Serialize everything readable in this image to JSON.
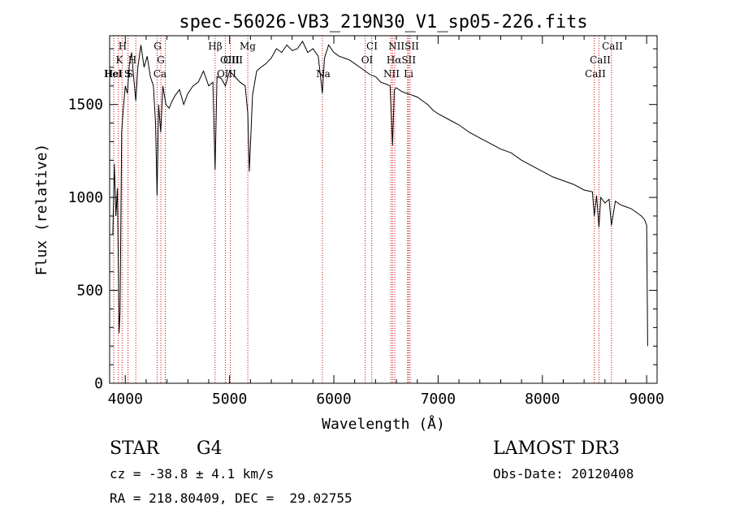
{
  "chart_data": {
    "type": "line",
    "title": "spec-56026-VB3_219N30_V1_sp05-226.fits",
    "xlabel": "Wavelength (Å)",
    "ylabel": "Flux (relative)",
    "xlim": [
      3850,
      9100
    ],
    "ylim": [
      0,
      1870
    ],
    "x_ticks": [
      4000,
      5000,
      6000,
      7000,
      8000,
      9000
    ],
    "y_ticks": [
      0,
      500,
      1000,
      1500
    ],
    "line_color": "#000000",
    "marker_color": "#cc0000",
    "series": [
      {
        "name": "flux",
        "x": [
          3880,
          3895,
          3910,
          3925,
          3940,
          3950,
          3965,
          3980,
          4000,
          4020,
          4040,
          4060,
          4080,
          4101,
          4120,
          4150,
          4180,
          4210,
          4240,
          4270,
          4290,
          4305,
          4320,
          4340,
          4360,
          4390,
          4420,
          4450,
          4480,
          4520,
          4560,
          4600,
          4650,
          4700,
          4750,
          4800,
          4840,
          4861,
          4880,
          4920,
          4960,
          5000,
          5050,
          5100,
          5150,
          5175,
          5190,
          5220,
          5260,
          5300,
          5350,
          5400,
          5450,
          5500,
          5550,
          5600,
          5650,
          5700,
          5750,
          5800,
          5850,
          5890,
          5910,
          5950,
          6000,
          6050,
          6100,
          6150,
          6200,
          6250,
          6300,
          6350,
          6400,
          6450,
          6500,
          6540,
          6563,
          6580,
          6600,
          6650,
          6700,
          6750,
          6800,
          6850,
          6900,
          6950,
          7000,
          7100,
          7200,
          7300,
          7400,
          7500,
          7600,
          7700,
          7800,
          7900,
          8000,
          8100,
          8200,
          8300,
          8400,
          8480,
          8498,
          8520,
          8542,
          8560,
          8600,
          8640,
          8662,
          8700,
          8750,
          8800,
          8850,
          8900,
          8950,
          8980,
          9000,
          9010
        ],
        "values": [
          800,
          1180,
          900,
          1050,
          270,
          380,
          1350,
          1470,
          1600,
          1560,
          1720,
          1780,
          1650,
          1520,
          1700,
          1820,
          1700,
          1760,
          1650,
          1600,
          1400,
          1010,
          1500,
          1350,
          1600,
          1500,
          1480,
          1520,
          1550,
          1580,
          1500,
          1560,
          1600,
          1620,
          1680,
          1600,
          1620,
          1150,
          1650,
          1640,
          1600,
          1680,
          1650,
          1620,
          1600,
          1450,
          1140,
          1550,
          1680,
          1700,
          1720,
          1750,
          1800,
          1780,
          1820,
          1790,
          1800,
          1840,
          1780,
          1800,
          1760,
          1560,
          1750,
          1820,
          1780,
          1760,
          1750,
          1740,
          1720,
          1700,
          1680,
          1660,
          1650,
          1620,
          1610,
          1600,
          1280,
          1580,
          1590,
          1570,
          1560,
          1550,
          1540,
          1520,
          1500,
          1470,
          1450,
          1420,
          1390,
          1350,
          1320,
          1290,
          1260,
          1240,
          1200,
          1170,
          1140,
          1110,
          1090,
          1070,
          1040,
          1030,
          900,
          1010,
          840,
          1000,
          970,
          990,
          850,
          980,
          960,
          950,
          940,
          920,
          900,
          880,
          850,
          200
        ]
      }
    ],
    "line_labels_top": [
      "H",
      "K",
      "HeI",
      "G",
      "Hβ",
      "Mg",
      "CI",
      "NIISII",
      "CaII"
    ],
    "line_labels_mid": [
      "H",
      "S",
      "G",
      "OIII",
      "OIII",
      "OI",
      "HαSII",
      "CaII"
    ],
    "line_labels_low": [
      "HeI",
      "S",
      "Ca",
      "OIII",
      "Na",
      "NII",
      "Li",
      "CaII"
    ]
  },
  "info": {
    "object_type": "STAR",
    "subclass": "G4",
    "survey": "LAMOST DR3",
    "cz_line": "cz = -38.8 ± 4.1 km/s",
    "obs_date_line": "Obs-Date: 20120408",
    "radec_line": "RA = 218.80409, DEC =  29.02755"
  }
}
